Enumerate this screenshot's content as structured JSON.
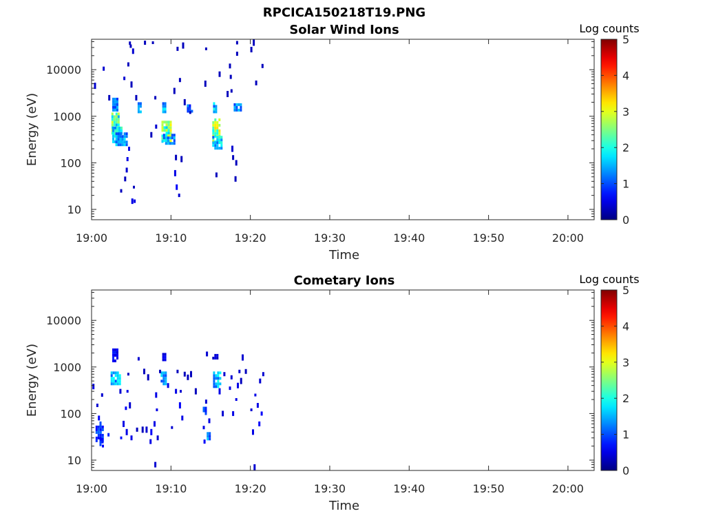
{
  "figure": {
    "title": "RPCICA150218T19.PNG"
  },
  "chart_data": [
    {
      "type": "heatmap",
      "title": "Solar Wind Ions",
      "xlabel": "Time",
      "ylabel": "Energy (eV)",
      "x_ticks": [
        "19:00",
        "19:10",
        "19:20",
        "19:30",
        "19:40",
        "19:50",
        "20:00"
      ],
      "x_tick_minutes": [
        0,
        10,
        20,
        30,
        40,
        50,
        60
      ],
      "xlim_minutes": [
        0,
        63.3
      ],
      "y_scale": "log",
      "y_ticks": [
        "10",
        "100",
        "1000",
        "10000"
      ],
      "y_tick_values": [
        10,
        100,
        1000,
        10000
      ],
      "ylim": [
        6,
        45000
      ],
      "colorbar": {
        "label": "Log counts",
        "ticks": [
          "0",
          "1",
          "2",
          "3",
          "4",
          "5"
        ],
        "range": [
          0,
          5
        ],
        "colormap": "jet"
      },
      "blobs": [
        {
          "t0": 2.6,
          "t1": 3.3,
          "e0": 1400,
          "e1": 2500,
          "level": 1.4
        },
        {
          "t0": 2.5,
          "t1": 3.4,
          "e0": 400,
          "e1": 1200,
          "level": 2.6
        },
        {
          "t0": 2.6,
          "t1": 3.8,
          "e0": 300,
          "e1": 600,
          "level": 2.2
        },
        {
          "t0": 3.0,
          "t1": 4.4,
          "e0": 260,
          "e1": 450,
          "level": 1.6
        },
        {
          "t0": 5.8,
          "t1": 6.3,
          "e0": 1300,
          "e1": 2000,
          "level": 1.5
        },
        {
          "t0": 8.9,
          "t1": 9.4,
          "e0": 1300,
          "e1": 2000,
          "level": 1.8
        },
        {
          "t0": 8.8,
          "t1": 9.9,
          "e0": 300,
          "e1": 800,
          "level": 2.8
        },
        {
          "t0": 9.0,
          "t1": 10.4,
          "e0": 250,
          "e1": 420,
          "level": 1.7
        },
        {
          "t0": 12.0,
          "t1": 12.6,
          "e0": 1300,
          "e1": 1800,
          "level": 1.3
        },
        {
          "t0": 15.3,
          "t1": 15.7,
          "e0": 1200,
          "e1": 2000,
          "level": 1.8
        },
        {
          "t0": 15.2,
          "t1": 16.2,
          "e0": 300,
          "e1": 900,
          "level": 2.9
        },
        {
          "t0": 15.2,
          "t1": 16.5,
          "e0": 200,
          "e1": 380,
          "level": 2.0
        },
        {
          "t0": 17.9,
          "t1": 18.8,
          "e0": 1300,
          "e1": 1900,
          "level": 1.5
        }
      ],
      "scatter": [
        {
          "t": 0.3,
          "e": 4500,
          "level": 0.4
        },
        {
          "t": 1.4,
          "e": 10500,
          "level": 0.4
        },
        {
          "t": 2.1,
          "e": 2500,
          "level": 0.3
        },
        {
          "t": 3.6,
          "e": 25,
          "level": 0.3
        },
        {
          "t": 4.0,
          "e": 6500,
          "level": 0.4
        },
        {
          "t": 4.1,
          "e": 45,
          "level": 0.3
        },
        {
          "t": 4.3,
          "e": 70,
          "level": 0.4
        },
        {
          "t": 4.4,
          "e": 120,
          "level": 0.5
        },
        {
          "t": 4.5,
          "e": 13000,
          "level": 0.3
        },
        {
          "t": 4.6,
          "e": 200,
          "level": 0.5
        },
        {
          "t": 4.7,
          "e": 37000,
          "level": 0.3
        },
        {
          "t": 4.8,
          "e": 32000,
          "level": 0.3
        },
        {
          "t": 4.9,
          "e": 4800,
          "level": 0.3
        },
        {
          "t": 5.0,
          "e": 15,
          "level": 0.5
        },
        {
          "t": 5.3,
          "e": 15,
          "level": 0.5
        },
        {
          "t": 5.2,
          "e": 30,
          "level": 0.3
        },
        {
          "t": 5.1,
          "e": 25000,
          "level": 0.4
        },
        {
          "t": 5.5,
          "e": 2500,
          "level": 0.3
        },
        {
          "t": 6.6,
          "e": 38000,
          "level": 0.3
        },
        {
          "t": 7.4,
          "e": 400,
          "level": 0.3
        },
        {
          "t": 7.6,
          "e": 38000,
          "level": 0.3
        },
        {
          "t": 7.9,
          "e": 2500,
          "level": 0.3
        },
        {
          "t": 8.0,
          "e": 600,
          "level": 0.4
        },
        {
          "t": 10.3,
          "e": 3500,
          "level": 0.3
        },
        {
          "t": 10.4,
          "e": 60,
          "level": 0.5
        },
        {
          "t": 10.6,
          "e": 30,
          "level": 0.6
        },
        {
          "t": 10.9,
          "e": 20,
          "level": 0.4
        },
        {
          "t": 10.5,
          "e": 130,
          "level": 0.3
        },
        {
          "t": 10.7,
          "e": 28000,
          "level": 0.3
        },
        {
          "t": 11.0,
          "e": 6000,
          "level": 0.3
        },
        {
          "t": 11.2,
          "e": 120,
          "level": 0.3
        },
        {
          "t": 11.4,
          "e": 33000,
          "level": 0.3
        },
        {
          "t": 11.6,
          "e": 2000,
          "level": 0.3
        },
        {
          "t": 12.3,
          "e": 1200,
          "level": 0.3
        },
        {
          "t": 14.2,
          "e": 5000,
          "level": 0.3
        },
        {
          "t": 14.3,
          "e": 28000,
          "level": 0.3
        },
        {
          "t": 15.6,
          "e": 55,
          "level": 0.3
        },
        {
          "t": 16.0,
          "e": 8000,
          "level": 0.3
        },
        {
          "t": 17.0,
          "e": 3000,
          "level": 0.3
        },
        {
          "t": 17.3,
          "e": 12000,
          "level": 0.3
        },
        {
          "t": 17.4,
          "e": 7000,
          "level": 0.3
        },
        {
          "t": 17.5,
          "e": 3500,
          "level": 0.3
        },
        {
          "t": 17.6,
          "e": 200,
          "level": 0.4
        },
        {
          "t": 17.7,
          "e": 130,
          "level": 0.3
        },
        {
          "t": 18.0,
          "e": 45,
          "level": 0.3
        },
        {
          "t": 18.1,
          "e": 100,
          "level": 0.3
        },
        {
          "t": 18.2,
          "e": 38000,
          "level": 0.3
        },
        {
          "t": 18.2,
          "e": 22000,
          "level": 0.3
        },
        {
          "t": 20.0,
          "e": 27000,
          "level": 0.3
        },
        {
          "t": 20.3,
          "e": 38000,
          "level": 0.3
        },
        {
          "t": 20.6,
          "e": 5200,
          "level": 0.3
        },
        {
          "t": 21.4,
          "e": 12000,
          "level": 0.3
        }
      ]
    },
    {
      "type": "heatmap",
      "title": "Cometary Ions",
      "xlabel": "Time",
      "ylabel": "Energy (eV)",
      "x_ticks": [
        "19:00",
        "19:10",
        "19:20",
        "19:30",
        "19:40",
        "19:50",
        "20:00"
      ],
      "x_tick_minutes": [
        0,
        10,
        20,
        30,
        40,
        50,
        60
      ],
      "xlim_minutes": [
        0,
        63.3
      ],
      "y_scale": "log",
      "y_ticks": [
        "10",
        "100",
        "1000",
        "10000"
      ],
      "y_tick_values": [
        10,
        100,
        1000,
        10000
      ],
      "ylim": [
        6,
        45000
      ],
      "colorbar": {
        "label": "Log counts",
        "ticks": [
          "0",
          "1",
          "2",
          "3",
          "4",
          "5"
        ],
        "range": [
          0,
          5
        ],
        "colormap": "jet"
      },
      "blobs": [
        {
          "t0": 2.6,
          "t1": 3.3,
          "e0": 1400,
          "e1": 2500,
          "level": 0.7
        },
        {
          "t0": 2.4,
          "t1": 3.7,
          "e0": 450,
          "e1": 800,
          "level": 1.7
        },
        {
          "t0": 8.7,
          "t1": 9.4,
          "e0": 450,
          "e1": 800,
          "level": 1.8
        },
        {
          "t0": 8.9,
          "t1": 9.3,
          "e0": 1400,
          "e1": 2000,
          "level": 0.6
        },
        {
          "t0": 15.3,
          "t1": 16.1,
          "e0": 400,
          "e1": 800,
          "level": 1.9
        },
        {
          "t0": 15.2,
          "t1": 15.9,
          "e0": 1500,
          "e1": 1900,
          "level": 0.5
        },
        {
          "t0": 0.5,
          "t1": 1.5,
          "e0": 25,
          "e1": 55,
          "level": 1.0
        },
        {
          "t0": 1.0,
          "t1": 1.5,
          "e0": 20,
          "e1": 30,
          "level": 0.9
        },
        {
          "t0": 14.5,
          "t1": 14.9,
          "e0": 30,
          "e1": 40,
          "level": 1.5
        },
        {
          "t0": 14.0,
          "t1": 14.4,
          "e0": 100,
          "e1": 140,
          "level": 1.2
        }
      ],
      "scatter": [
        {
          "t": 0.1,
          "e": 380,
          "level": 0.5
        },
        {
          "t": 0.6,
          "e": 150,
          "level": 0.4
        },
        {
          "t": 0.8,
          "e": 80,
          "level": 0.6
        },
        {
          "t": 1.0,
          "e": 60,
          "level": 1.0
        },
        {
          "t": 1.2,
          "e": 250,
          "level": 0.4
        },
        {
          "t": 1.3,
          "e": 20,
          "level": 0.6
        },
        {
          "t": 2.0,
          "e": 35,
          "level": 0.8
        },
        {
          "t": 3.5,
          "e": 300,
          "level": 0.4
        },
        {
          "t": 3.6,
          "e": 30,
          "level": 0.7
        },
        {
          "t": 3.9,
          "e": 60,
          "level": 0.5
        },
        {
          "t": 4.2,
          "e": 130,
          "level": 0.6
        },
        {
          "t": 4.3,
          "e": 40,
          "level": 0.5
        },
        {
          "t": 4.4,
          "e": 300,
          "level": 0.5
        },
        {
          "t": 4.5,
          "e": 700,
          "level": 0.3
        },
        {
          "t": 4.7,
          "e": 150,
          "level": 0.4
        },
        {
          "t": 4.9,
          "e": 30,
          "level": 0.5
        },
        {
          "t": 5.6,
          "e": 45,
          "level": 0.3
        },
        {
          "t": 5.8,
          "e": 1500,
          "level": 0.4
        },
        {
          "t": 6.3,
          "e": 45,
          "level": 0.3
        },
        {
          "t": 6.5,
          "e": 800,
          "level": 0.3
        },
        {
          "t": 6.8,
          "e": 45,
          "level": 0.4
        },
        {
          "t": 7.0,
          "e": 600,
          "level": 0.3
        },
        {
          "t": 7.3,
          "e": 25,
          "level": 0.5
        },
        {
          "t": 7.4,
          "e": 40,
          "level": 0.6
        },
        {
          "t": 7.8,
          "e": 60,
          "level": 0.5
        },
        {
          "t": 7.9,
          "e": 8,
          "level": 0.4
        },
        {
          "t": 8.0,
          "e": 250,
          "level": 0.5
        },
        {
          "t": 8.1,
          "e": 120,
          "level": 0.5
        },
        {
          "t": 8.2,
          "e": 30,
          "level": 0.4
        },
        {
          "t": 8.5,
          "e": 800,
          "level": 0.3
        },
        {
          "t": 9.5,
          "e": 400,
          "level": 0.5
        },
        {
          "t": 10.0,
          "e": 50,
          "level": 0.4
        },
        {
          "t": 10.5,
          "e": 300,
          "level": 0.5
        },
        {
          "t": 10.7,
          "e": 800,
          "level": 0.3
        },
        {
          "t": 11.0,
          "e": 150,
          "level": 0.6
        },
        {
          "t": 11.1,
          "e": 300,
          "level": 0.4
        },
        {
          "t": 11.3,
          "e": 80,
          "level": 0.5
        },
        {
          "t": 11.6,
          "e": 700,
          "level": 0.3
        },
        {
          "t": 12.0,
          "e": 600,
          "level": 0.3
        },
        {
          "t": 12.4,
          "e": 700,
          "level": 0.3
        },
        {
          "t": 13.0,
          "e": 300,
          "level": 0.3
        },
        {
          "t": 14.0,
          "e": 50,
          "level": 0.5
        },
        {
          "t": 14.1,
          "e": 25,
          "level": 0.6
        },
        {
          "t": 14.3,
          "e": 180,
          "level": 0.4
        },
        {
          "t": 14.4,
          "e": 1900,
          "level": 0.4
        },
        {
          "t": 14.7,
          "e": 70,
          "level": 0.5
        },
        {
          "t": 16.0,
          "e": 300,
          "level": 0.5
        },
        {
          "t": 16.4,
          "e": 100,
          "level": 0.4
        },
        {
          "t": 16.6,
          "e": 700,
          "level": 0.4
        },
        {
          "t": 17.3,
          "e": 350,
          "level": 0.5
        },
        {
          "t": 17.5,
          "e": 600,
          "level": 0.4
        },
        {
          "t": 17.7,
          "e": 100,
          "level": 0.5
        },
        {
          "t": 18.1,
          "e": 200,
          "level": 0.5
        },
        {
          "t": 18.3,
          "e": 400,
          "level": 0.5
        },
        {
          "t": 18.5,
          "e": 800,
          "level": 0.4
        },
        {
          "t": 18.7,
          "e": 500,
          "level": 0.3
        },
        {
          "t": 18.9,
          "e": 1600,
          "level": 0.4
        },
        {
          "t": 19.3,
          "e": 800,
          "level": 0.3
        },
        {
          "t": 20.0,
          "e": 120,
          "level": 0.4
        },
        {
          "t": 20.2,
          "e": 40,
          "level": 0.5
        },
        {
          "t": 20.4,
          "e": 7,
          "level": 0.4
        },
        {
          "t": 20.5,
          "e": 250,
          "level": 0.5
        },
        {
          "t": 20.8,
          "e": 150,
          "level": 0.5
        },
        {
          "t": 21.0,
          "e": 60,
          "level": 0.6
        },
        {
          "t": 21.1,
          "e": 500,
          "level": 0.4
        },
        {
          "t": 21.3,
          "e": 100,
          "level": 0.6
        },
        {
          "t": 21.5,
          "e": 700,
          "level": 0.4
        }
      ]
    }
  ]
}
